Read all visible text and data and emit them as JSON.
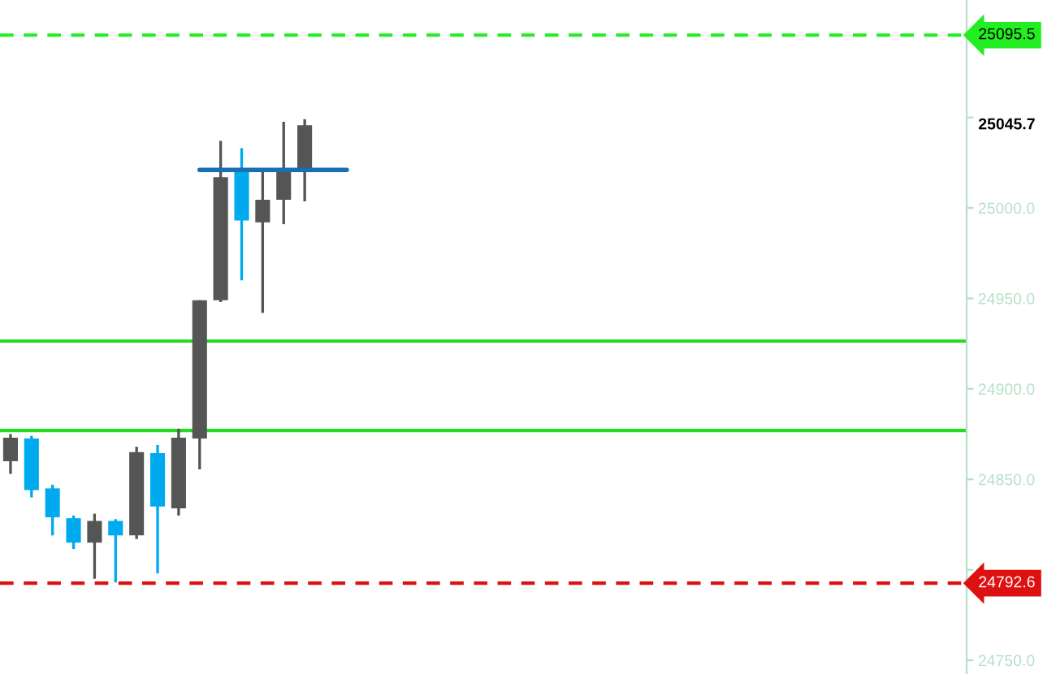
{
  "chart_data": {
    "type": "candlestick",
    "categories": [
      null,
      null,
      null,
      null,
      null,
      null,
      null,
      null,
      null,
      null,
      null,
      null,
      null,
      null,
      null,
      null,
      null,
      null,
      null,
      null,
      null,
      null,
      null,
      null,
      null,
      null,
      null,
      null,
      null,
      null,
      null,
      null,
      null,
      null,
      null,
      null,
      null,
      null,
      null,
      null,
      null,
      null,
      null,
      null,
      null,
      null
    ],
    "ohlc": [
      [
        24860,
        24875,
        24853,
        24873
      ],
      [
        24872.5,
        24874,
        24840,
        24844
      ],
      [
        24845,
        24847,
        24819,
        24829
      ],
      [
        24828.5,
        24830,
        24811.5,
        24815
      ],
      [
        24815,
        24831,
        24795,
        24827
      ],
      [
        24827,
        24828,
        24793,
        24819
      ],
      [
        24819,
        24868,
        24817,
        24865
      ],
      [
        24864.5,
        24869,
        24798,
        24835
      ],
      [
        24834,
        24878,
        24830,
        24873
      ],
      [
        24872.5,
        24949,
        24855.5,
        24949
      ],
      [
        24949,
        25037,
        24948,
        25017
      ],
      [
        25020.6,
        25033,
        24960,
        24993
      ],
      [
        24992,
        25021,
        24942,
        25004.5
      ],
      [
        25004.5,
        25047.6,
        24991,
        25022
      ],
      [
        25021.5,
        25049,
        25003.6,
        25045.7
      ],
      null,
      null,
      null,
      null,
      null,
      null,
      null,
      null,
      null,
      null,
      null,
      null,
      null,
      null,
      null,
      null,
      null,
      null,
      null,
      null,
      null,
      null,
      null,
      null,
      null,
      null,
      null,
      null,
      null,
      null,
      null
    ],
    "colors": [
      "#555555",
      "#00aaee",
      "#00aaee",
      "#00aaee",
      "#555555",
      "#00aaee",
      "#555555",
      "#00aaee",
      "#555555",
      "#555555",
      "#555555",
      "#00aaee",
      "#555555",
      "#555555",
      "#555555",
      null,
      null,
      null,
      null,
      null,
      null,
      null,
      null,
      null,
      null,
      null,
      null,
      null,
      null,
      null,
      null,
      null,
      null,
      null,
      null,
      null,
      null,
      null,
      null,
      null,
      null,
      null,
      null,
      null,
      null,
      null
    ],
    "series": [
      {
        "type": "line",
        "color": "#1a6fb0",
        "values": [
          null,
          null,
          null,
          null,
          null,
          null,
          null,
          null,
          null,
          25021,
          25021,
          25021,
          25021,
          25021,
          25021,
          25021,
          25021,
          null,
          null,
          null,
          null,
          null,
          null,
          null,
          null,
          null,
          null,
          null,
          null,
          null,
          null,
          null,
          null,
          null,
          null,
          null,
          null,
          null,
          null,
          null,
          null,
          null,
          null,
          null,
          null,
          null
        ]
      }
    ],
    "ylim": [
      24742.4,
      25114.9
    ],
    "yticks": [
      {
        "value": 24750,
        "label": "24750.0"
      },
      {
        "value": 24800,
        "label": null
      },
      {
        "value": 24850,
        "label": "24850.0"
      },
      {
        "value": 24900,
        "label": "24900.0"
      },
      {
        "value": 24950,
        "label": "24950.0"
      },
      {
        "value": 25000,
        "label": "25000.0"
      },
      {
        "value": 25050,
        "label": null
      }
    ],
    "ref_lines": [
      {
        "axis": "y",
        "value": 25095.5,
        "label": "25095.5",
        "color": "#22ee22",
        "line_style": "dashed"
      },
      {
        "axis": "y",
        "value": 24792.6,
        "label": "24792.6",
        "color": "#dd1111",
        "line_style": "dashed"
      },
      {
        "axis": "y",
        "value": 24926.4,
        "color": "#22dd22",
        "line_style": "solid"
      },
      {
        "axis": "y",
        "value": 24877,
        "color": "#22dd22",
        "line_style": "solid"
      }
    ],
    "annotations": [
      "25045.7"
    ],
    "tick_labels": "y",
    "grid": false
  }
}
